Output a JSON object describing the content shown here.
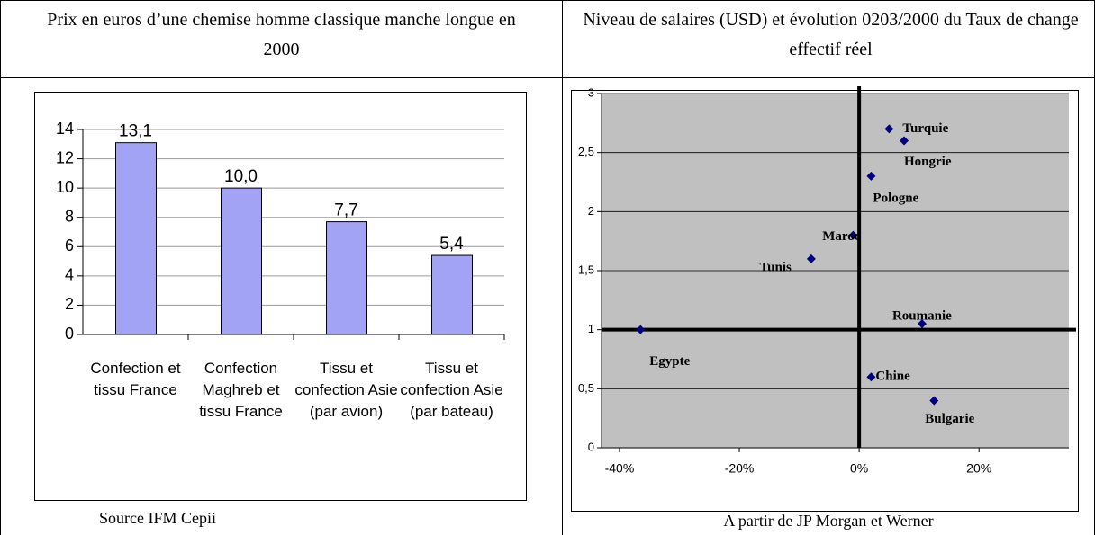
{
  "left": {
    "header": "Prix en euros d’une chemise homme classique manche longue en 2000",
    "source": "Source IFM Cepii"
  },
  "right": {
    "header": "Niveau de salaires (USD) et évolution 0203/2000 du Taux de change effectif réel",
    "source": "A partir de JP Morgan et Werner"
  },
  "chart_data": [
    {
      "type": "bar",
      "categories": [
        "Confection et tissu France",
        "Confection Maghreb et tissu France",
        "Tissu et confection Asie (par avion)",
        "Tissu et confection Asie (par bateau)"
      ],
      "values": [
        13.1,
        10.0,
        7.7,
        5.4
      ],
      "value_labels": [
        "13,1",
        "10,0",
        "7,7",
        "5,4"
      ],
      "color": "#a3a3f5",
      "ylim": [
        0,
        14
      ],
      "yticks": [
        0,
        2,
        4,
        6,
        8,
        10,
        12,
        14
      ],
      "grid": true
    },
    {
      "type": "scatter",
      "labels": [
        "Turquie",
        "Hongrie",
        "Pologne",
        "Maroc",
        "Tunis",
        "Egypte",
        "Roumanie",
        "Chine",
        "Bulgarie"
      ],
      "x": [
        5,
        7.5,
        2,
        -1,
        -8,
        -36.5,
        10.5,
        2,
        12.5
      ],
      "values": [
        2.7,
        2.6,
        2.3,
        1.8,
        1.6,
        1.0,
        1.05,
        0.6,
        0.4
      ],
      "color": "#000080",
      "background": "#c0c0c0",
      "reference_lines": {
        "x": 0,
        "y": 1
      },
      "xlim": [
        -43,
        35
      ],
      "xticks": [
        {
          "value": -40,
          "label": "-40%"
        },
        {
          "value": -20,
          "label": "-20%"
        },
        {
          "value": 0,
          "label": "0%"
        },
        {
          "value": 20,
          "label": "20%"
        }
      ],
      "ylim": [
        0,
        3
      ],
      "yticks": [
        0,
        {
          "value": 0.5,
          "label": "0,5"
        },
        1,
        {
          "value": 1.5,
          "label": "1,5"
        },
        2,
        {
          "value": 2.5,
          "label": "2,5"
        },
        3
      ],
      "grid": true
    }
  ]
}
